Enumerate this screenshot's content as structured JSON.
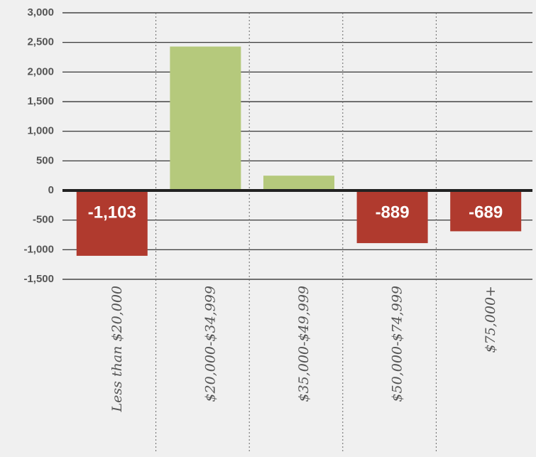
{
  "chart_data": {
    "type": "bar",
    "categories": [
      "Less than $20,000",
      "$20,000-$34,999",
      "$35,000-$49,999",
      "$50,000-$74,999",
      "$75,000+"
    ],
    "values": [
      -1103,
      2430,
      250,
      -889,
      -689
    ],
    "value_labels": [
      "-1,103",
      null,
      null,
      "-889",
      "-689"
    ],
    "colors": {
      "positive": "#b5c97c",
      "negative": "#b03a2e"
    },
    "ylim": [
      -1500,
      3000
    ],
    "yticks": [
      {
        "value": -1500,
        "label": "-1,500"
      },
      {
        "value": -1000,
        "label": "-1,000"
      },
      -500,
      0,
      500,
      {
        "value": 1000,
        "label": "1,000"
      },
      {
        "value": 1500,
        "label": "1,500"
      },
      {
        "value": 2000,
        "label": "2,000"
      },
      {
        "value": 2500,
        "label": "2,500"
      },
      {
        "value": 3000,
        "label": "3,000"
      }
    ],
    "grid": true
  }
}
